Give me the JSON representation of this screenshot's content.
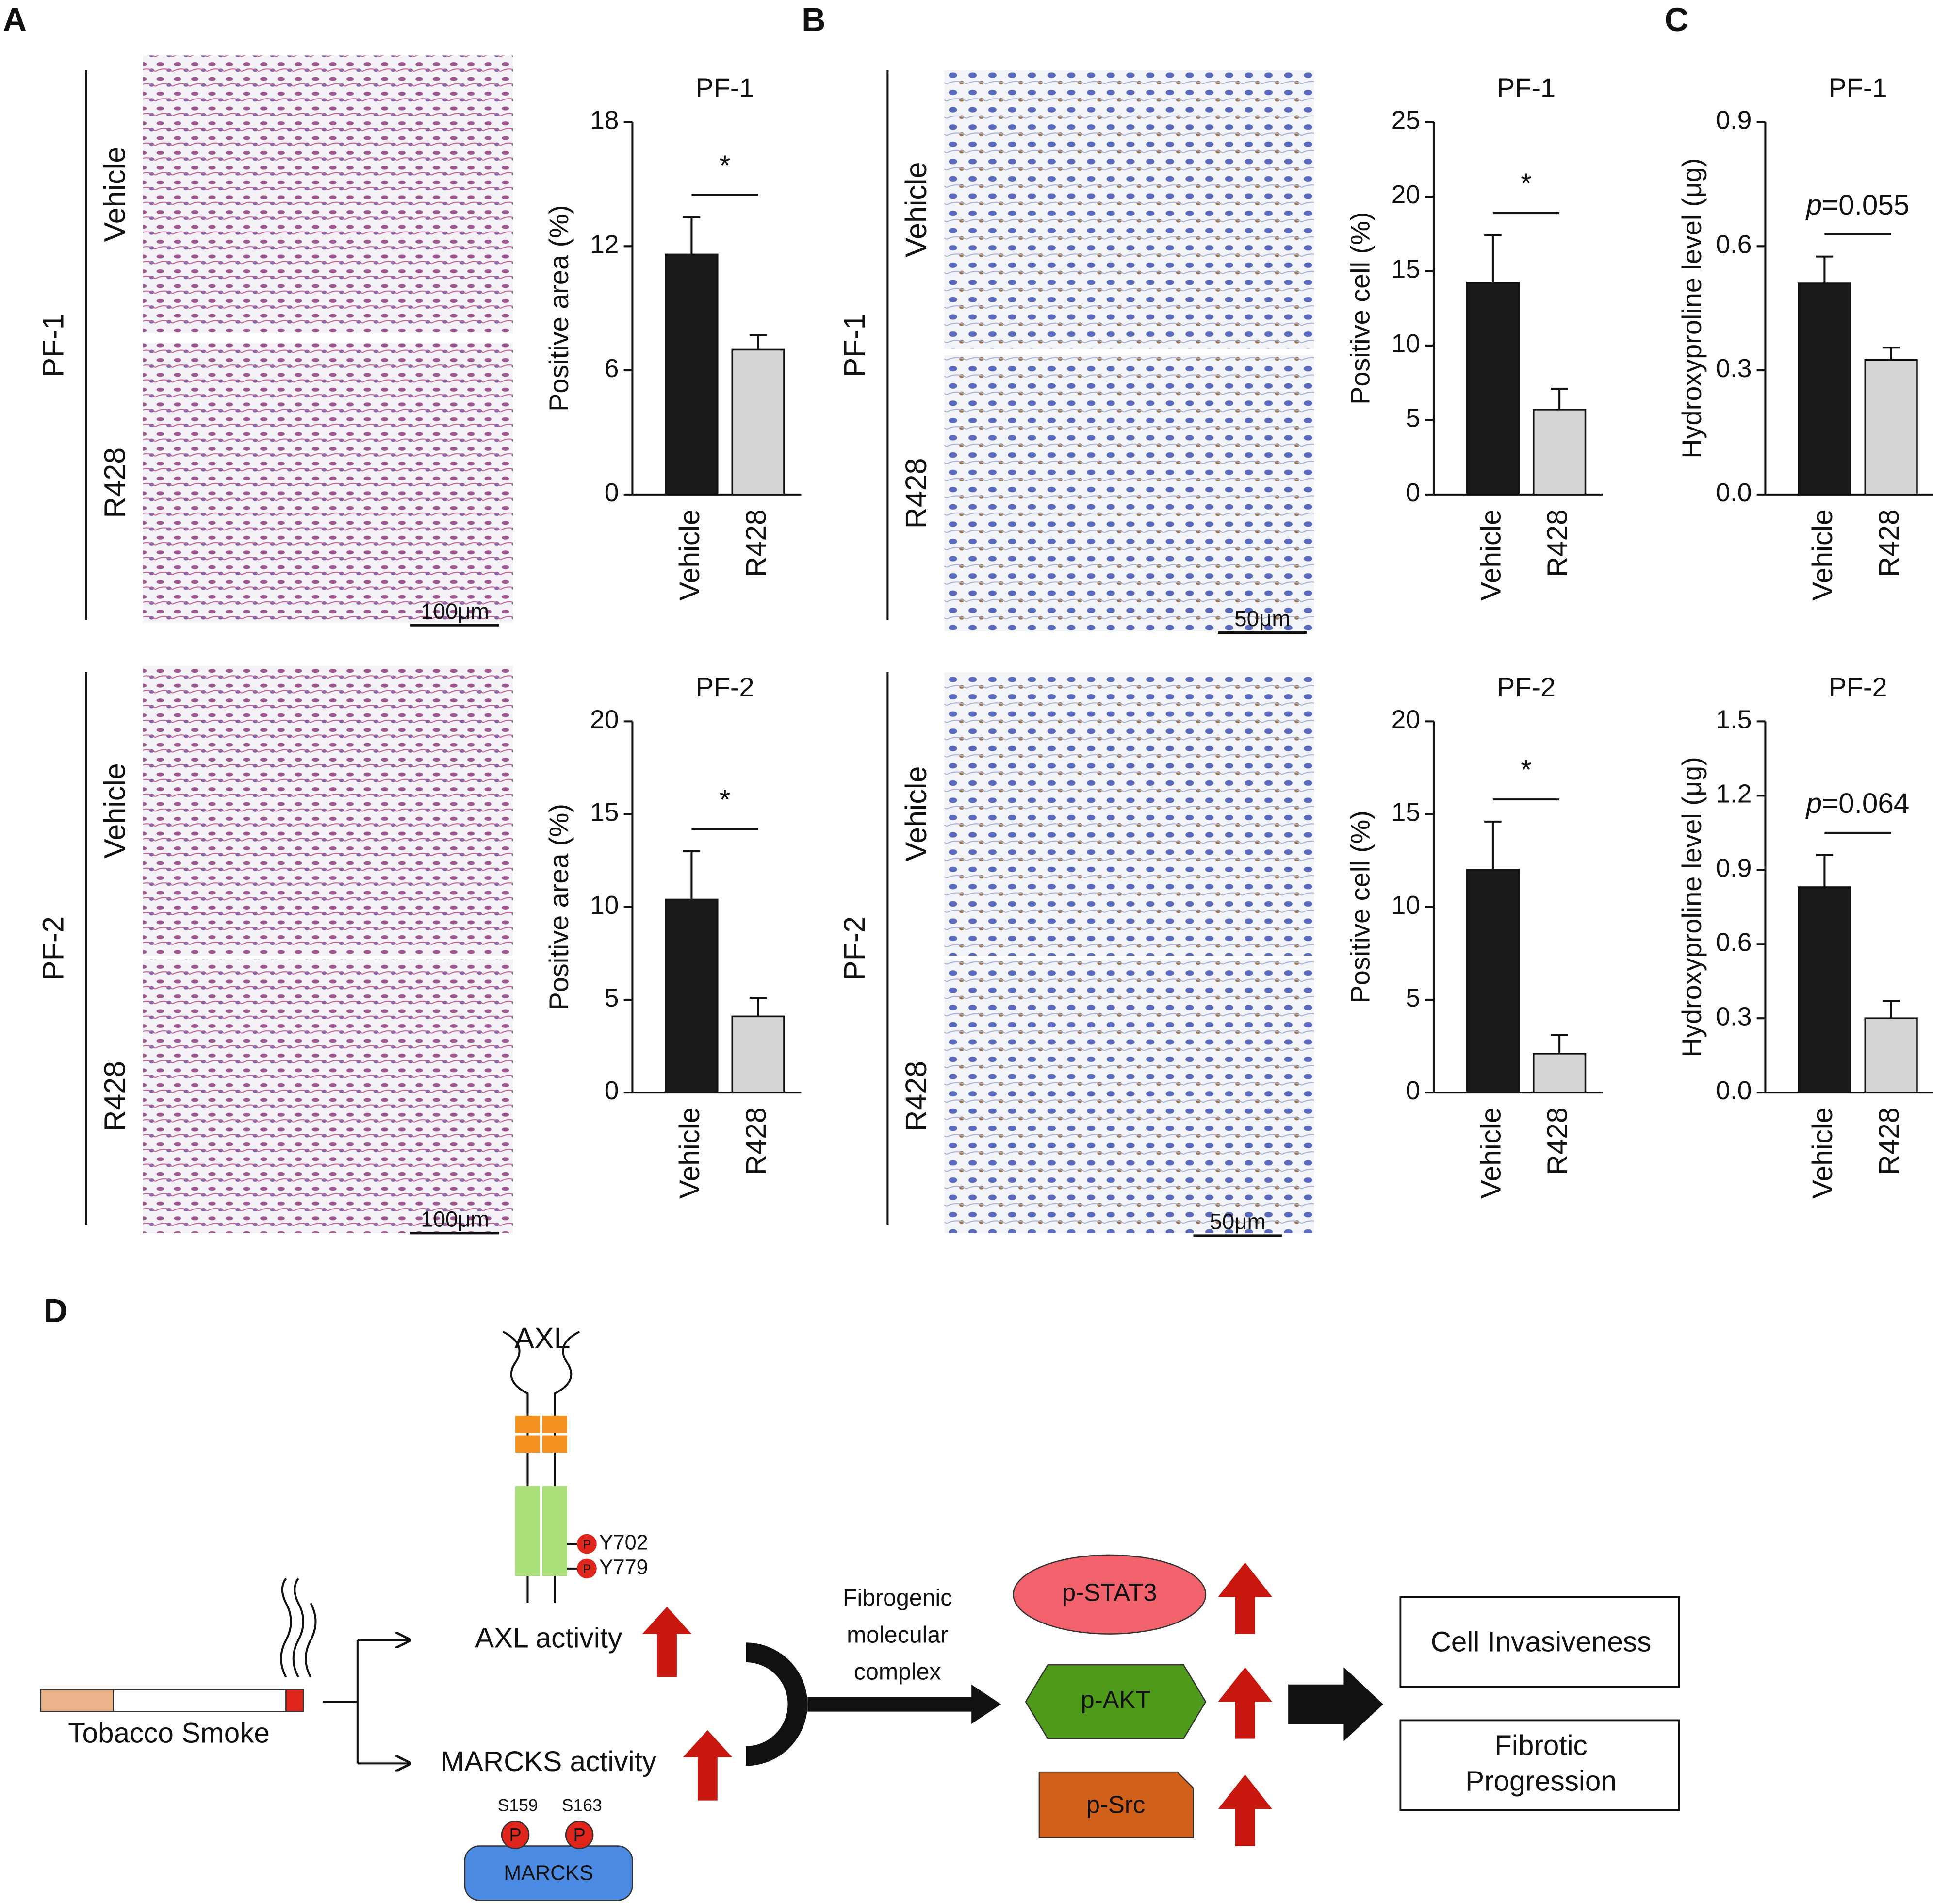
{
  "panel_labels": [
    "A",
    "B",
    "C",
    "D"
  ],
  "micrographs": [
    {
      "group": "PF-1",
      "rows": [
        "Vehicle",
        "R428"
      ],
      "scale": "100μm"
    },
    {
      "group": "PF-2",
      "rows": [
        "Vehicle",
        "R428"
      ],
      "scale": "100μm"
    },
    {
      "group": "PF-1",
      "rows": [
        "Vehicle",
        "R428"
      ],
      "scale": "50μm"
    },
    {
      "group": "PF-2",
      "rows": [
        "Vehicle",
        "R428"
      ],
      "scale": "50μm"
    }
  ],
  "chart_data": [
    {
      "type": "bar",
      "title": "PF-1",
      "y_label": "Positive area (%)",
      "categories": [
        "Vehicle",
        "R428"
      ],
      "values": [
        11.6,
        7.0
      ],
      "errors": [
        1.8,
        0.7
      ],
      "colors": [
        "#1a1a1a",
        "#d4d4d4"
      ],
      "ylim": [
        0,
        18
      ],
      "yticks": [
        0,
        6,
        12,
        18
      ],
      "annotation": "*"
    },
    {
      "type": "bar",
      "title": "PF-2",
      "y_label": "Positive area (%)",
      "categories": [
        "Vehicle",
        "R428"
      ],
      "values": [
        10.4,
        4.1
      ],
      "errors": [
        2.6,
        1.0
      ],
      "colors": [
        "#1a1a1a",
        "#d4d4d4"
      ],
      "ylim": [
        0,
        20
      ],
      "yticks": [
        0,
        5,
        10,
        15,
        20
      ],
      "annotation": "*"
    },
    {
      "type": "bar",
      "title": "PF-1",
      "y_label": "Positive cell (%)",
      "categories": [
        "Vehicle",
        "R428"
      ],
      "values": [
        14.2,
        5.7
      ],
      "errors": [
        3.2,
        1.4
      ],
      "colors": [
        "#1a1a1a",
        "#d4d4d4"
      ],
      "ylim": [
        0,
        25
      ],
      "yticks": [
        0,
        5,
        10,
        15,
        20,
        25
      ],
      "annotation": "*"
    },
    {
      "type": "bar",
      "title": "PF-2",
      "y_label": "Positive cell (%)",
      "categories": [
        "Vehicle",
        "R428"
      ],
      "values": [
        12.0,
        2.1
      ],
      "errors": [
        2.6,
        1.0
      ],
      "colors": [
        "#1a1a1a",
        "#d4d4d4"
      ],
      "ylim": [
        0,
        20
      ],
      "yticks": [
        0,
        5,
        10,
        15,
        20
      ],
      "annotation": "*"
    },
    {
      "type": "bar",
      "title": "PF-1",
      "y_label": "Hydroxyproline level (μg)",
      "categories": [
        "Vehicle",
        "R428"
      ],
      "values": [
        0.51,
        0.325
      ],
      "errors": [
        0.065,
        0.03
      ],
      "colors": [
        "#1a1a1a",
        "#d4d4d4"
      ],
      "ylim": [
        0,
        0.9
      ],
      "yticks": [
        {
          "value": 0,
          "label": "0.0"
        },
        0.3,
        0.6,
        0.9
      ],
      "annotation_prefix": "p",
      "annotation": "=0.055"
    },
    {
      "type": "bar",
      "title": "PF-2",
      "y_label": "Hydroxyproline level (μg)",
      "categories": [
        "Vehicle",
        "R428"
      ],
      "values": [
        0.83,
        0.3
      ],
      "errors": [
        0.13,
        0.07
      ],
      "colors": [
        "#1a1a1a",
        "#d4d4d4"
      ],
      "ylim": [
        0,
        1.5
      ],
      "yticks": [
        {
          "value": 0,
          "label": "0.0"
        },
        0.3,
        0.6,
        0.9,
        1.2,
        {
          "value": 1.5,
          "label": "1.5"
        }
      ],
      "annotation_prefix": "p",
      "annotation": "=0.064"
    }
  ],
  "diagram": {
    "receptor": "AXL",
    "sites_axl": [
      "Y702",
      "Y779"
    ],
    "phospho": "P",
    "axl_activity": "AXL activity",
    "marcks_activity": "MARCKS activity",
    "sites_marcks": [
      "S159",
      "S163"
    ],
    "marcks": "MARCKS",
    "source": "Tobacco Smoke",
    "complex": [
      "Fibrogenic",
      "molecular",
      "complex"
    ],
    "effectors": [
      "p-STAT3",
      "p-AKT",
      "p-Src"
    ],
    "outcomes": [
      "Cell Invasiveness",
      "Fibrotic",
      "Progression"
    ]
  }
}
